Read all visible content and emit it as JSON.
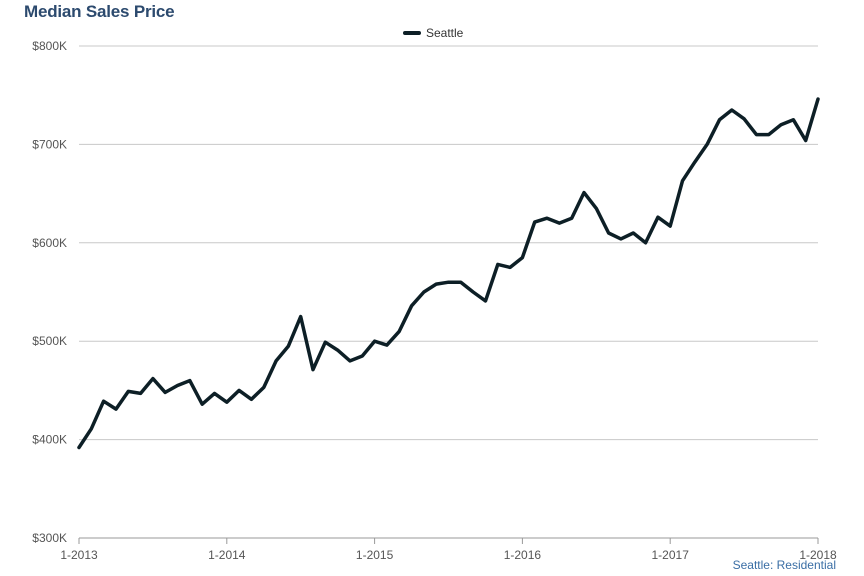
{
  "chart_data": {
    "type": "line",
    "title": "Median Sales Price",
    "xlabel": "",
    "ylabel": "",
    "ylim": [
      300000,
      800000
    ],
    "y_ticks": [
      300000,
      400000,
      500000,
      600000,
      700000,
      800000
    ],
    "y_tick_labels": [
      "$300K",
      "$400K",
      "$500K",
      "$600K",
      "$700K",
      "$800K"
    ],
    "x_tick_labels": [
      "1-2013",
      "1-2014",
      "1-2015",
      "1-2016",
      "1-2017",
      "1-2018"
    ],
    "grid": true,
    "legend": "top-center",
    "series": [
      {
        "name": "Seattle",
        "color": "#0d1f26",
        "x": [
          "2013-01",
          "2013-02",
          "2013-03",
          "2013-04",
          "2013-05",
          "2013-06",
          "2013-07",
          "2013-08",
          "2013-09",
          "2013-10",
          "2013-11",
          "2013-12",
          "2014-01",
          "2014-02",
          "2014-03",
          "2014-04",
          "2014-05",
          "2014-06",
          "2014-07",
          "2014-08",
          "2014-09",
          "2014-10",
          "2014-11",
          "2014-12",
          "2015-01",
          "2015-02",
          "2015-03",
          "2015-04",
          "2015-05",
          "2015-06",
          "2015-07",
          "2015-08",
          "2015-09",
          "2015-10",
          "2015-11",
          "2015-12",
          "2016-01",
          "2016-02",
          "2016-03",
          "2016-04",
          "2016-05",
          "2016-06",
          "2016-07",
          "2016-08",
          "2016-09",
          "2016-10",
          "2016-11",
          "2016-12",
          "2017-01",
          "2017-02",
          "2017-03",
          "2017-04",
          "2017-05",
          "2017-06",
          "2017-07",
          "2017-08",
          "2017-09",
          "2017-10",
          "2017-11",
          "2017-12",
          "2018-01"
        ],
        "values": [
          392000,
          411000,
          439000,
          431000,
          449000,
          447000,
          462000,
          448000,
          455000,
          460000,
          436000,
          447000,
          438000,
          450000,
          441000,
          453000,
          480000,
          495000,
          525000,
          471000,
          499000,
          491000,
          480000,
          485000,
          500000,
          496000,
          510000,
          536000,
          550000,
          558000,
          560000,
          560000,
          550000,
          541000,
          578000,
          575000,
          585000,
          621000,
          625000,
          620000,
          625000,
          651000,
          635000,
          610000,
          604000,
          610000,
          600000,
          626000,
          617000,
          663000,
          682000,
          700000,
          725000,
          735000,
          726000,
          710000,
          710000,
          720000,
          725000,
          704000,
          746000
        ]
      }
    ]
  },
  "footer": {
    "note": "Seattle: Residential"
  },
  "colors": {
    "title": "#2c4a6e",
    "axis_text": "#555555",
    "grid": "#c8c8c8",
    "footer": "#3a6ea5"
  }
}
